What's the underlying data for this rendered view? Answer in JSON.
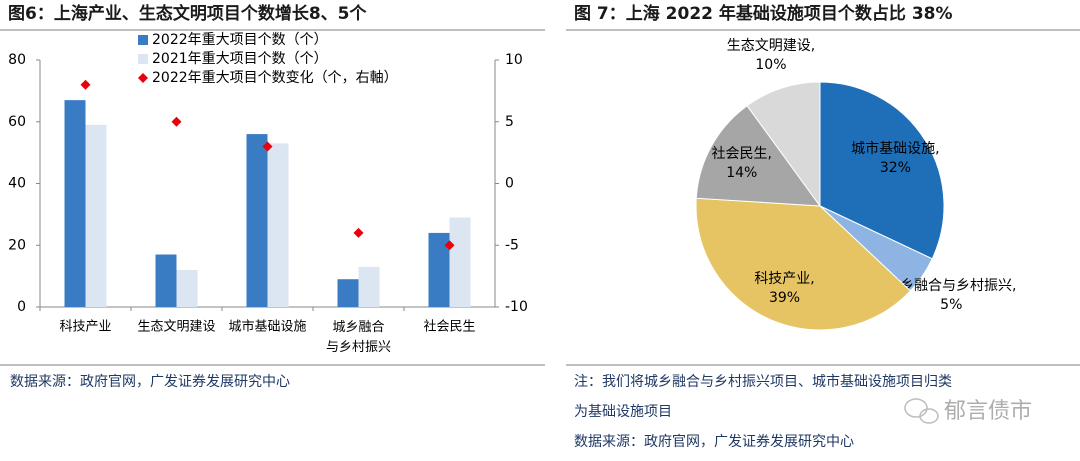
{
  "chart_data": [
    {
      "type": "bar",
      "title": "图6：上海产业、生态文明项目个数增长8、5个",
      "categories": [
        "科技产业",
        "生态文明建设",
        "城市基础设施",
        "城乡融合\n与乡村振兴",
        "社会民生"
      ],
      "series": [
        {
          "name": "2022年重大项目个数（个）",
          "type": "bar",
          "color": "#3a7cc4",
          "values": [
            67,
            17,
            56,
            9,
            24
          ]
        },
        {
          "name": "2021年重大项目个数（个）",
          "type": "bar",
          "color": "#dce6f2",
          "values": [
            59,
            12,
            53,
            13,
            29
          ]
        },
        {
          "name": "2022年重大项目个数变化（个，右軸）",
          "type": "scatter",
          "axis": "y2",
          "color": "#e8000b",
          "values": [
            8,
            5,
            3,
            -4,
            -5
          ]
        }
      ],
      "ylim": [
        0,
        80
      ],
      "yticks": [
        0,
        20,
        40,
        60,
        80
      ],
      "y2lim": [
        -10,
        10
      ],
      "y2ticks": [
        -10,
        -5,
        0,
        5,
        10
      ],
      "legend": "top",
      "grid": false,
      "source": "数据来源：政府官网，广发证券发展研究中心"
    },
    {
      "type": "pie",
      "title": "图 7：上海 2022 年基础设施项目个数占比 38%",
      "categories": [
        "城市基础设施,",
        "城乡融合与乡村振兴,",
        "科技产业,",
        "社会民生,",
        "生态文明建设,"
      ],
      "values": [
        32,
        5,
        39,
        14,
        10
      ],
      "value_labels": [
        "32%",
        "5%",
        "39%",
        "14%",
        "10%"
      ],
      "colors": [
        "#1f6eb8",
        "#8db4e2",
        "#e6c463",
        "#a6a6a6",
        "#d9d9d9"
      ],
      "note": [
        "注：我们将城乡融合与乡村振兴项目、城市基础设施项目归类",
        "为基础设施项目"
      ],
      "source": "数据来源：政府官网，广发证券发展研究中心"
    }
  ],
  "watermark": "郁言债市"
}
